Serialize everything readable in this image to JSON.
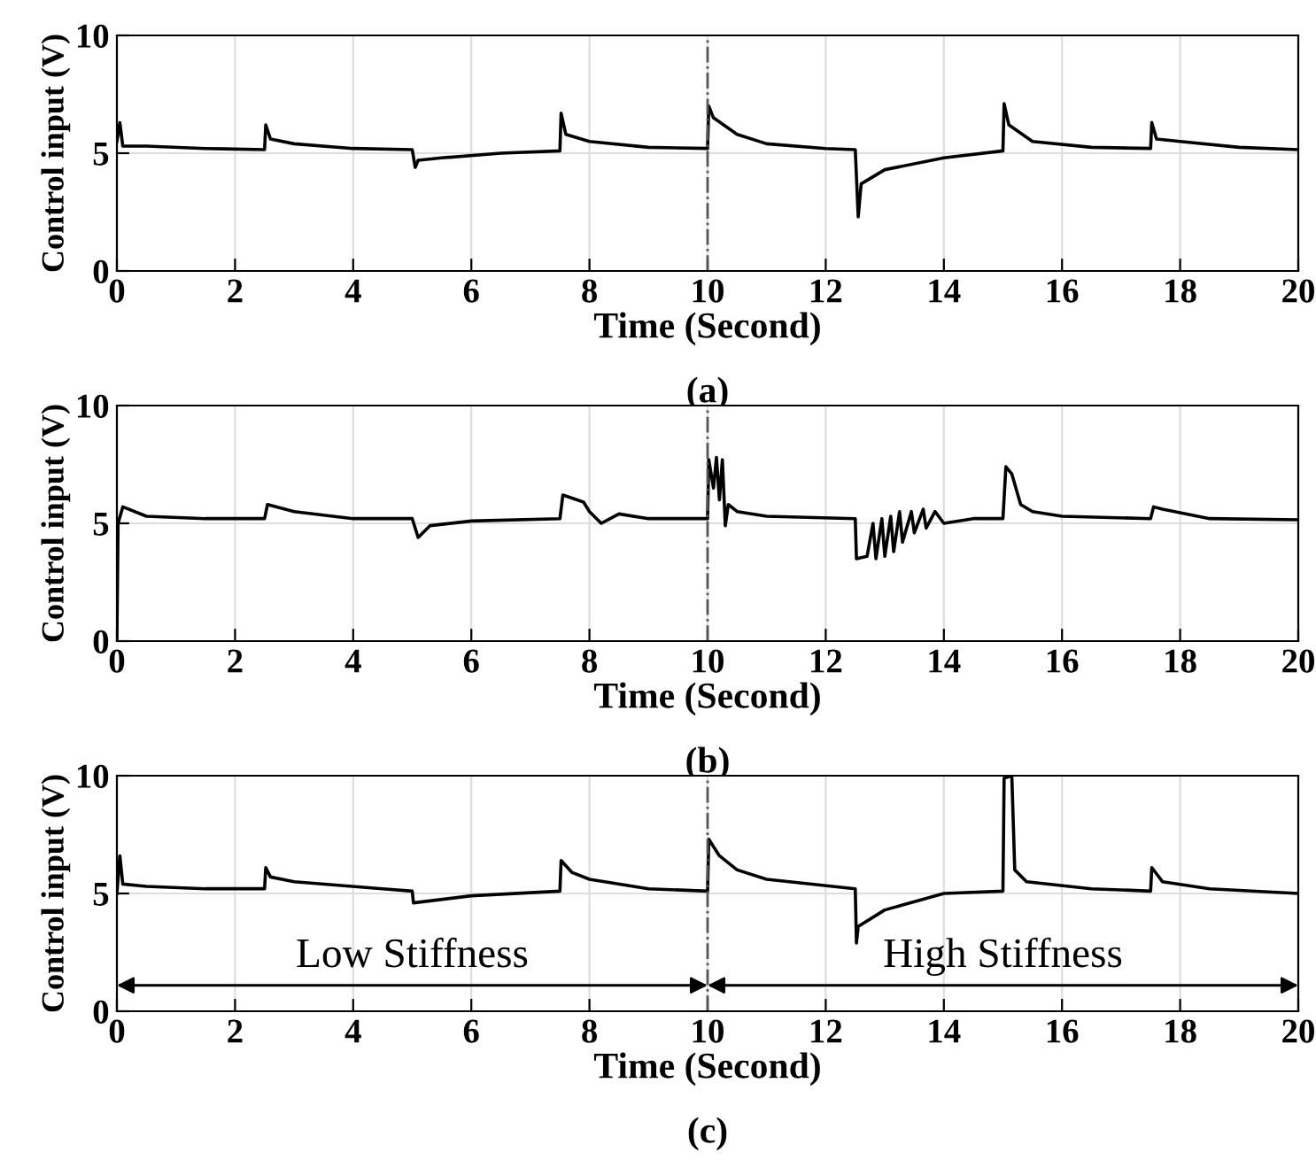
{
  "chart_data": [
    {
      "type": "line",
      "xlabel": "Time (Second)",
      "ylabel": "Control input (V)",
      "annotations": [
        "(a)"
      ],
      "xlim": [
        0,
        20
      ],
      "ylim": [
        0,
        10
      ],
      "xticks": [
        0,
        2,
        4,
        6,
        8,
        10,
        12,
        14,
        16,
        18,
        20
      ],
      "yticks": [
        0,
        5,
        10
      ],
      "grid": true,
      "line_style": "solid",
      "ref_lines": [
        {
          "axis": "x",
          "value": 10,
          "line_style": "dashdot",
          "color": "#555555"
        }
      ],
      "series": [
        {
          "color": "#000000",
          "x": [
            0,
            0.05,
            0.1,
            0.5,
            1.5,
            2.5,
            2.52,
            2.6,
            3.0,
            4.0,
            5.0,
            5.05,
            5.1,
            5.5,
            6.5,
            7.5,
            7.52,
            7.6,
            8.0,
            9.0,
            10.0,
            10.02,
            10.1,
            10.5,
            11.0,
            12.0,
            12.5,
            12.55,
            12.6,
            13.0,
            14.0,
            15.0,
            15.02,
            15.1,
            15.5,
            16.5,
            17.5,
            17.52,
            17.6,
            18.0,
            19.0,
            20.0
          ],
          "values": [
            5.5,
            6.3,
            5.3,
            5.3,
            5.2,
            5.15,
            6.2,
            5.6,
            5.4,
            5.2,
            5.15,
            4.4,
            4.7,
            4.8,
            5.0,
            5.1,
            6.7,
            5.8,
            5.5,
            5.25,
            5.2,
            7.0,
            6.5,
            5.8,
            5.4,
            5.2,
            5.15,
            2.3,
            3.7,
            4.3,
            4.8,
            5.1,
            7.1,
            6.2,
            5.5,
            5.25,
            5.2,
            6.3,
            5.6,
            5.5,
            5.25,
            5.15
          ]
        }
      ]
    },
    {
      "type": "line",
      "xlabel": "Time (Second)",
      "ylabel": "Control input (V)",
      "annotations": [
        "(b)"
      ],
      "xlim": [
        0,
        20
      ],
      "ylim": [
        0,
        10
      ],
      "xticks": [
        0,
        2,
        4,
        6,
        8,
        10,
        12,
        14,
        16,
        18,
        20
      ],
      "yticks": [
        0,
        5,
        10
      ],
      "grid": true,
      "line_style": "solid",
      "ref_lines": [
        {
          "axis": "x",
          "value": 10,
          "line_style": "dashdot",
          "color": "#555555"
        }
      ],
      "series": [
        {
          "color": "#000000",
          "x": [
            0,
            0.02,
            0.1,
            0.5,
            1.5,
            2.5,
            2.55,
            3.0,
            4.0,
            5.0,
            5.1,
            5.3,
            6.0,
            7.5,
            7.55,
            7.9,
            8.0,
            8.2,
            8.5,
            9.0,
            10.0,
            10.02,
            10.1,
            10.15,
            10.2,
            10.25,
            10.3,
            10.35,
            10.5,
            11.0,
            12.5,
            12.52,
            12.7,
            12.8,
            12.85,
            12.95,
            13.0,
            13.1,
            13.15,
            13.25,
            13.3,
            13.45,
            13.5,
            13.65,
            13.7,
            13.85,
            14.0,
            14.5,
            15.0,
            15.05,
            15.15,
            15.3,
            15.5,
            16.0,
            17.5,
            17.55,
            17.7,
            18.5,
            20.0
          ],
          "values": [
            0,
            5.0,
            5.7,
            5.3,
            5.2,
            5.2,
            5.8,
            5.5,
            5.2,
            5.2,
            4.4,
            4.9,
            5.1,
            5.2,
            6.2,
            5.9,
            5.5,
            5.0,
            5.4,
            5.2,
            5.2,
            7.7,
            6.5,
            7.8,
            6.0,
            7.7,
            4.9,
            5.8,
            5.5,
            5.3,
            5.2,
            3.5,
            3.6,
            5.0,
            3.5,
            5.2,
            3.6,
            5.3,
            3.8,
            5.5,
            4.2,
            5.5,
            4.6,
            5.6,
            4.8,
            5.5,
            5.0,
            5.2,
            5.2,
            7.4,
            7.1,
            5.8,
            5.5,
            5.3,
            5.2,
            5.7,
            5.6,
            5.2,
            5.15
          ]
        }
      ]
    },
    {
      "type": "line",
      "xlabel": "Time (Second)",
      "ylabel": "Control input (V)",
      "xlim": [
        0,
        20
      ],
      "ylim": [
        0,
        10
      ],
      "xticks": [
        0,
        2,
        4,
        6,
        8,
        10,
        12,
        14,
        16,
        18,
        20
      ],
      "yticks": [
        0,
        5,
        10
      ],
      "grid": true,
      "line_style": "solid",
      "ref_lines": [
        {
          "axis": "x",
          "value": 10,
          "line_style": "dashdot",
          "color": "#555555"
        }
      ],
      "annotations": [
        "(c)",
        "Low Stiffness",
        "High Stiffness"
      ],
      "series": [
        {
          "color": "#000000",
          "x": [
            0,
            0.05,
            0.1,
            0.5,
            1.5,
            2.5,
            2.52,
            2.6,
            3.0,
            4.5,
            5.0,
            5.02,
            6.0,
            7.5,
            7.52,
            7.7,
            8.0,
            9.0,
            10.0,
            10.02,
            10.2,
            10.5,
            11.0,
            12.5,
            12.52,
            12.55,
            13.0,
            14.0,
            15.0,
            15.02,
            15.15,
            15.2,
            15.4,
            16.5,
            17.5,
            17.52,
            17.7,
            18.5,
            20.0
          ],
          "values": [
            5.0,
            6.6,
            5.4,
            5.3,
            5.2,
            5.2,
            6.1,
            5.7,
            5.5,
            5.2,
            5.1,
            4.6,
            4.9,
            5.1,
            6.4,
            5.9,
            5.6,
            5.2,
            5.1,
            7.3,
            6.6,
            6.0,
            5.6,
            5.2,
            2.9,
            3.6,
            4.3,
            5.0,
            5.1,
            9.9,
            10.0,
            6.0,
            5.5,
            5.2,
            5.1,
            6.1,
            5.5,
            5.2,
            5.0
          ]
        }
      ]
    }
  ]
}
